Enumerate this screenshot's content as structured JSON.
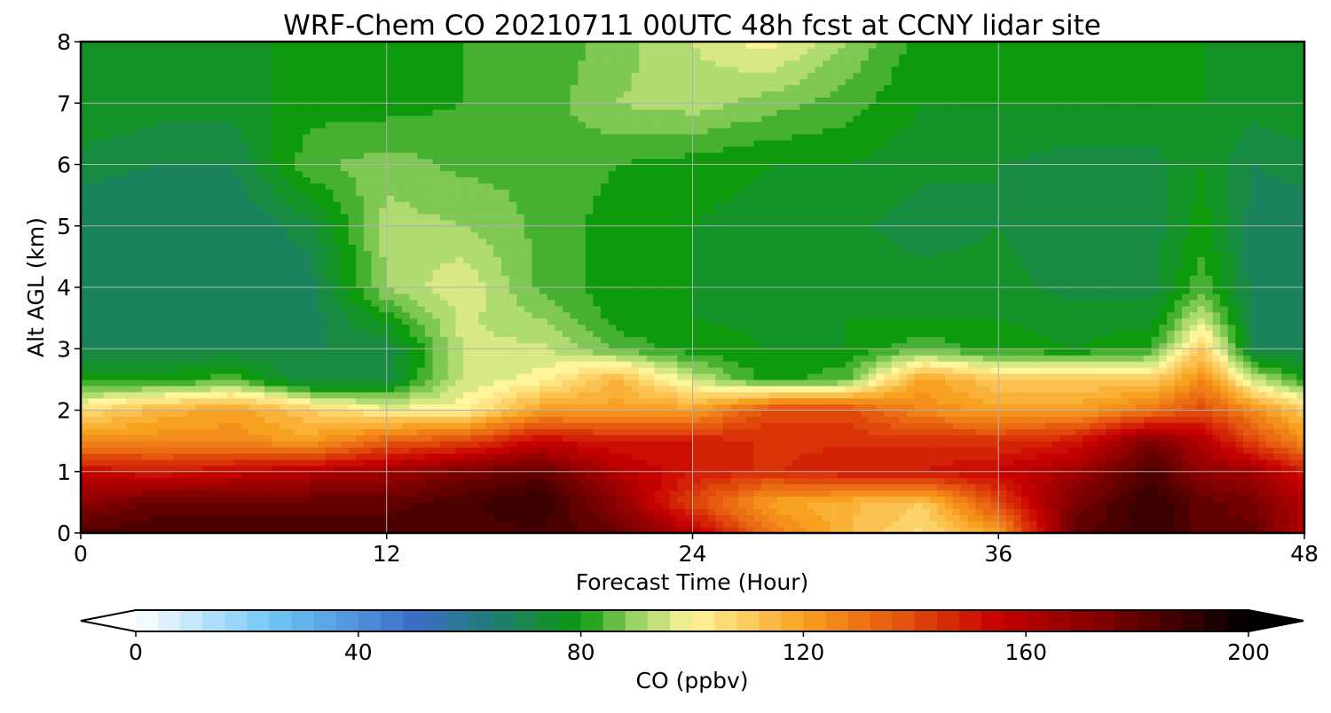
{
  "chart_data": {
    "type": "heatmap",
    "title": "WRF-Chem CO  20210711 00UTC 48h fcst at CCNY lidar site",
    "xlabel": "Forecast Time (Hour)",
    "ylabel": "Alt AGL (km)",
    "xlim": [
      0,
      48
    ],
    "ylim": [
      0,
      8
    ],
    "xticks": [
      0,
      12,
      24,
      36,
      48
    ],
    "yticks": [
      0,
      1,
      2,
      3,
      4,
      5,
      6,
      7,
      8
    ],
    "grid": true,
    "colorbar": {
      "label": "CO  (ppbv)",
      "range": [
        0,
        200
      ],
      "ticks": [
        0,
        40,
        80,
        120,
        160,
        200
      ],
      "extend": "both",
      "orientation": "horizontal",
      "placement": "bottom",
      "stops": [
        {
          "v": 0,
          "c": "#ffffff"
        },
        {
          "v": 25,
          "c": "#6ec6f5"
        },
        {
          "v": 50,
          "c": "#3a6ec8"
        },
        {
          "v": 65,
          "c": "#1f7d6e"
        },
        {
          "v": 80,
          "c": "#0d9a0d"
        },
        {
          "v": 90,
          "c": "#9bd465"
        },
        {
          "v": 100,
          "c": "#fff59a"
        },
        {
          "v": 120,
          "c": "#f8a020"
        },
        {
          "v": 135,
          "c": "#e86010"
        },
        {
          "v": 155,
          "c": "#c80000"
        },
        {
          "v": 175,
          "c": "#7a0000"
        },
        {
          "v": 200,
          "c": "#000000"
        }
      ]
    },
    "grid_hours": [
      0,
      3,
      6,
      9,
      12,
      15,
      18,
      21,
      24,
      27,
      30,
      33,
      36,
      39,
      42,
      44,
      46,
      48
    ],
    "grid_alts_km": [
      0,
      0.5,
      1,
      1.5,
      2,
      2.5,
      3,
      3.5,
      4,
      5,
      6,
      7,
      8
    ],
    "values_ppbv": [
      [
        185,
        185,
        185,
        185,
        185,
        185,
        185,
        180,
        160,
        130,
        115,
        105,
        120,
        180,
        190,
        180,
        180,
        160
      ],
      [
        170,
        180,
        180,
        180,
        180,
        185,
        190,
        170,
        140,
        120,
        115,
        110,
        140,
        175,
        190,
        180,
        175,
        160
      ],
      [
        155,
        150,
        155,
        160,
        165,
        175,
        180,
        160,
        150,
        145,
        150,
        150,
        155,
        165,
        185,
        170,
        165,
        150
      ],
      [
        125,
        125,
        125,
        120,
        135,
        140,
        155,
        150,
        150,
        145,
        145,
        145,
        145,
        150,
        175,
        160,
        140,
        125
      ],
      [
        105,
        115,
        120,
        110,
        100,
        100,
        120,
        120,
        120,
        140,
        140,
        125,
        120,
        120,
        130,
        140,
        125,
        110
      ],
      [
        80,
        80,
        85,
        70,
        72,
        95,
        100,
        115,
        95,
        80,
        85,
        120,
        110,
        110,
        110,
        125,
        95,
        80
      ],
      [
        70,
        70,
        70,
        70,
        70,
        95,
        95,
        85,
        80,
        78,
        78,
        85,
        80,
        78,
        82,
        110,
        70,
        70
      ],
      [
        68,
        68,
        68,
        68,
        80,
        95,
        90,
        80,
        78,
        77,
        78,
        78,
        78,
        76,
        76,
        95,
        70,
        68
      ],
      [
        66,
        66,
        66,
        68,
        90,
        98,
        85,
        80,
        78,
        77,
        77,
        76,
        76,
        72,
        72,
        85,
        68,
        66
      ],
      [
        66,
        66,
        66,
        72,
        92,
        90,
        85,
        80,
        78,
        76,
        75,
        72,
        74,
        70,
        72,
        80,
        68,
        66
      ],
      [
        72,
        70,
        70,
        85,
        88,
        85,
        85,
        82,
        80,
        78,
        78,
        75,
        74,
        72,
        72,
        78,
        70,
        72
      ],
      [
        78,
        76,
        76,
        80,
        80,
        82,
        84,
        90,
        92,
        88,
        84,
        78,
        78,
        78,
        78,
        78,
        76,
        78
      ],
      [
        78,
        78,
        78,
        78,
        80,
        82,
        82,
        88,
        94,
        100,
        90,
        80,
        78,
        78,
        78,
        78,
        78,
        78
      ]
    ]
  }
}
